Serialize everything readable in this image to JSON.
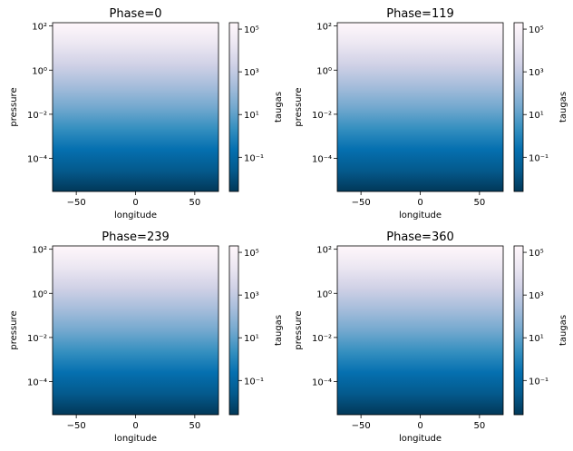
{
  "chart_data": [
    {
      "type": "heatmap",
      "title": "Phase=0",
      "xlabel": "longitude",
      "ylabel": "pressure",
      "xlim": [
        -70,
        70
      ],
      "ylim_log10": [
        2.15,
        -5.5
      ],
      "x_ticks": [
        {
          "v": -50,
          "label": "−50"
        },
        {
          "v": 0,
          "label": "0"
        },
        {
          "v": 50,
          "label": "50"
        }
      ],
      "y_ticks": [
        {
          "e": -4,
          "label": "10⁻⁴"
        },
        {
          "e": -2,
          "label": "10⁻²"
        },
        {
          "e": 0,
          "label": "10⁰"
        },
        {
          "e": 2,
          "label": "10²"
        }
      ],
      "colorbar": {
        "label": "taugas",
        "scale": "log",
        "range_log10": [
          -2.6,
          5.3
        ],
        "ticks": [
          {
            "e": 5,
            "label": "10⁵"
          },
          {
            "e": 3,
            "label": "10³"
          },
          {
            "e": 1,
            "label": "10¹"
          },
          {
            "e": -1,
            "label": "10⁻¹"
          }
        ]
      }
    },
    {
      "type": "heatmap",
      "title": "Phase=119",
      "xlabel": "longitude",
      "ylabel": "pressure",
      "xlim": [
        -70,
        70
      ],
      "ylim_log10": [
        2.15,
        -5.5
      ],
      "x_ticks": [
        {
          "v": -50,
          "label": "−50"
        },
        {
          "v": 0,
          "label": "0"
        },
        {
          "v": 50,
          "label": "50"
        }
      ],
      "y_ticks": [
        {
          "e": -4,
          "label": "10⁻⁴"
        },
        {
          "e": -2,
          "label": "10⁻²"
        },
        {
          "e": 0,
          "label": "10⁰"
        },
        {
          "e": 2,
          "label": "10²"
        }
      ],
      "colorbar": {
        "label": "taugas",
        "scale": "log",
        "range_log10": [
          -2.6,
          5.3
        ],
        "ticks": [
          {
            "e": 5,
            "label": "10⁵"
          },
          {
            "e": 3,
            "label": "10³"
          },
          {
            "e": 1,
            "label": "10¹"
          },
          {
            "e": -1,
            "label": "10⁻¹"
          }
        ]
      }
    },
    {
      "type": "heatmap",
      "title": "Phase=239",
      "xlabel": "longitude",
      "ylabel": "pressure",
      "xlim": [
        -70,
        70
      ],
      "ylim_log10": [
        2.15,
        -5.5
      ],
      "x_ticks": [
        {
          "v": -50,
          "label": "−50"
        },
        {
          "v": 0,
          "label": "0"
        },
        {
          "v": 50,
          "label": "50"
        }
      ],
      "y_ticks": [
        {
          "e": -4,
          "label": "10⁻⁴"
        },
        {
          "e": -2,
          "label": "10⁻²"
        },
        {
          "e": 0,
          "label": "10⁰"
        },
        {
          "e": 2,
          "label": "10²"
        }
      ],
      "colorbar": {
        "label": "taugas",
        "scale": "log",
        "range_log10": [
          -2.6,
          5.3
        ],
        "ticks": [
          {
            "e": 5,
            "label": "10⁵"
          },
          {
            "e": 3,
            "label": "10³"
          },
          {
            "e": 1,
            "label": "10¹"
          },
          {
            "e": -1,
            "label": "10⁻¹"
          }
        ]
      }
    },
    {
      "type": "heatmap",
      "title": "Phase=360",
      "xlabel": "longitude",
      "ylabel": "pressure",
      "xlim": [
        -70,
        70
      ],
      "ylim_log10": [
        2.15,
        -5.5
      ],
      "x_ticks": [
        {
          "v": -50,
          "label": "−50"
        },
        {
          "v": 0,
          "label": "0"
        },
        {
          "v": 50,
          "label": "50"
        }
      ],
      "y_ticks": [
        {
          "e": -4,
          "label": "10⁻⁴"
        },
        {
          "e": -2,
          "label": "10⁻²"
        },
        {
          "e": 0,
          "label": "10⁰"
        },
        {
          "e": 2,
          "label": "10²"
        }
      ],
      "colorbar": {
        "label": "taugas",
        "scale": "log",
        "range_log10": [
          -2.6,
          5.3
        ],
        "ticks": [
          {
            "e": 5,
            "label": "10⁵"
          },
          {
            "e": 3,
            "label": "10³"
          },
          {
            "e": 1,
            "label": "10¹"
          },
          {
            "e": -1,
            "label": "10⁻¹"
          }
        ]
      }
    }
  ],
  "colormap": [
    "#fff7fb",
    "#ece7f2",
    "#d0d1e6",
    "#a6bddb",
    "#74a9cf",
    "#3690c0",
    "#0570b0",
    "#045a8d",
    "#023858"
  ]
}
